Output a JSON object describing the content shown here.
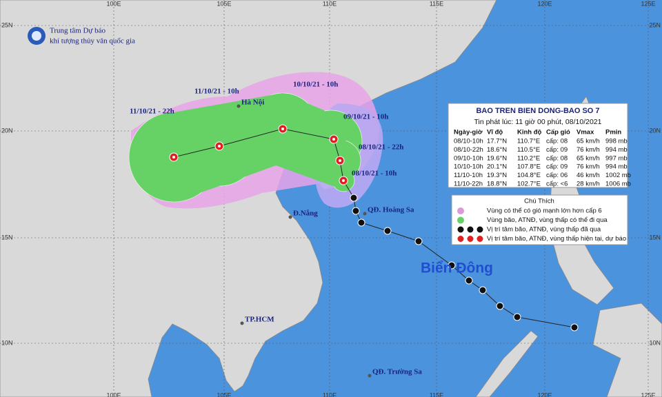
{
  "header": {
    "line1": "Trung tâm Dự báo",
    "line2": "khí tượng thủy văn quốc gia"
  },
  "axes": {
    "longitude": [
      "100E",
      "105E",
      "110E",
      "115E",
      "120E",
      "125E"
    ],
    "latitude": [
      "25N",
      "20N",
      "15N",
      "10N"
    ]
  },
  "places": [
    "Hà Nội",
    "Đ.Nẵng",
    "TP.HCM",
    "QĐ. Hoàng Sa",
    "QĐ. Trường Sa"
  ],
  "sea_label": "Biển Đông",
  "forecast_labels": [
    "08/10/21 - 10h",
    "08/10/21 - 22h",
    "09/10/21 - 10h",
    "10/10/21 - 10h",
    "11/10/21 - 10h",
    "11/10/21 - 22h"
  ],
  "bulletin": {
    "title": "BAO TREN BIEN DONG-BAO SO 7",
    "issued": "Tin phát lúc: 11 giờ 00 phút, 08/10/2021",
    "columns": [
      "Ngày-giờ",
      "Vĩ độ",
      "Kinh độ",
      "Cấp gió",
      "Vmax",
      "Pmin"
    ],
    "rows": [
      [
        "08/10-10h",
        "17.7°N",
        "110.7°E",
        "cấp: 08",
        "65 km/h",
        "998 mb"
      ],
      [
        "08/10-22h",
        "18.6°N",
        "110.5°E",
        "cấp: 09",
        "76 km/h",
        "994 mb"
      ],
      [
        "09/10-10h",
        "19.6°N",
        "110.2°E",
        "cấp: 08",
        "65 km/h",
        "997 mb"
      ],
      [
        "10/10-10h",
        "20.1°N",
        "107.8°E",
        "cấp: 09",
        "76 km/h",
        "994 mb"
      ],
      [
        "11/10-10h",
        "19.3°N",
        "104.8°E",
        "cấp: 06",
        "46 km/h",
        "1002 mb"
      ],
      [
        "11/10-22h",
        "18.8°N",
        "102.7°E",
        "cấp: <6",
        "28 km/h",
        "1006 mb"
      ]
    ]
  },
  "legend": {
    "title": "Chú Thích",
    "items": [
      "Vùng có thể có gió mạnh lớn hơn cấp 6",
      "Vùng bão, ATNĐ, vùng thấp có thể đi qua",
      "Vị trí tâm bão, ATNĐ, vùng thấp đã qua",
      "Vị trí tâm bão, ATNĐ, vùng thấp hiện tại, dự báo"
    ]
  }
}
